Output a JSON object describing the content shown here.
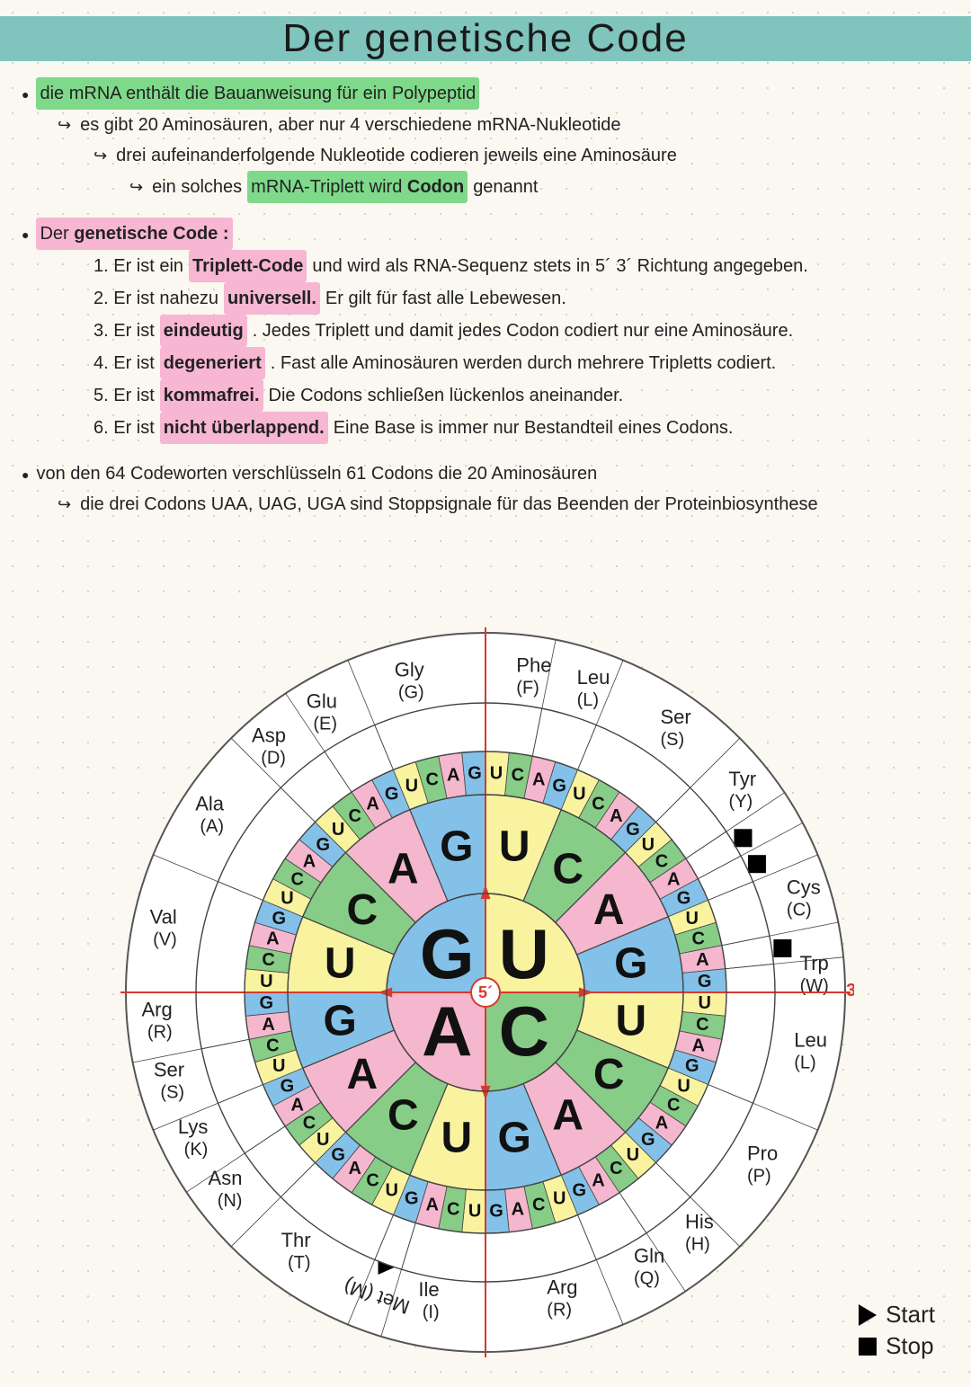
{
  "title": "Der genetische Code",
  "colors": {
    "titlebar": "#7fc4bd",
    "paper": "#faf8f0",
    "hl_green": "#7fd98a",
    "hl_pink": "#f7b6d2",
    "axis_red": "#d63a2f",
    "wheel_border": "#555555",
    "sector_line": "#444444",
    "base": {
      "U": "#f9f3a0",
      "C": "#87cc87",
      "A": "#f5b7ce",
      "G": "#84c1e8"
    }
  },
  "notes": {
    "l1": "die mRNA enthält die Bauanweisung für ein Polypeptid",
    "l2": "es gibt 20 Aminosäuren, aber nur 4 verschiedene mRNA-Nukleotide",
    "l3": "drei aufeinanderfolgende Nukleotide codieren jeweils eine Aminosäure",
    "l4a": "ein solches",
    "l4b": "mRNA-Triplett wird",
    "l4c": "Codon",
    "l4d": "genannt",
    "h2a": "Der",
    "h2b": "genetische Code :",
    "p1a": "1. Er ist ein",
    "p1b": "Triplett-Code",
    "p1c": "und wird als RNA-Sequenz stets in 5´      3´ Richtung angegeben.",
    "p2a": "2. Er ist nahezu",
    "p2b": "universell.",
    "p2c": "Er gilt für fast alle Lebewesen.",
    "p3a": "3. Er ist",
    "p3b": "eindeutig",
    "p3c": ". Jedes Triplett und damit jedes Codon codiert nur eine Aminosäure.",
    "p4a": "4. Er ist",
    "p4b": "degeneriert",
    "p4c": ". Fast alle Aminosäuren werden durch mehrere Tripletts codiert.",
    "p5a": "5. Er ist",
    "p5b": "kommafrei.",
    "p5c": "Die Codons schließen lückenlos aneinander.",
    "p6a": "6. Er ist",
    "p6b": "nicht überlappend.",
    "p6c": "Eine Base is immer nur Bestandteil eines Codons.",
    "l5": "von den 64 Codeworten verschlüsseln 61 Codons die 20 Aminosäuren",
    "l6": "die drei Codons UAA, UAG, UGA sind Stoppsignale für das Beenden der Proteinbiosynthese"
  },
  "legend": {
    "start": "Start",
    "stop": "Stop"
  },
  "wheel": {
    "radii": {
      "r1": 110,
      "r2": 220,
      "r3": 268,
      "r4": 322,
      "outer": 400
    },
    "center_label": "5´",
    "prime": "3´",
    "ring1": [
      {
        "b": "U",
        "a0": -90,
        "a1": 0
      },
      {
        "b": "C",
        "a0": 0,
        "a1": 90
      },
      {
        "b": "A",
        "a0": 90,
        "a1": 180
      },
      {
        "b": "G",
        "a0": 180,
        "a1": 270
      }
    ],
    "ring2_order": [
      "U",
      "C",
      "A",
      "G"
    ],
    "amino": [
      {
        "name": "Phe",
        "s": "(F)",
        "a0": -90,
        "a1": -78.75
      },
      {
        "name": "Leu",
        "s": "(L)",
        "a0": -78.75,
        "a1": -67.5
      },
      {
        "name": "Ser",
        "s": "(S)",
        "a0": -67.5,
        "a1": -45
      },
      {
        "name": "Tyr",
        "s": "(Y)",
        "a0": -45,
        "a1": -33.75
      },
      {
        "name": "stop",
        "s": "",
        "a0": -33.75,
        "a1": -28.125,
        "mark": "sq"
      },
      {
        "name": "stop",
        "s": "",
        "a0": -28.125,
        "a1": -22.5,
        "mark": "sq"
      },
      {
        "name": "Cys",
        "s": "(C)",
        "a0": -22.5,
        "a1": -11.25
      },
      {
        "name": "stop",
        "s": "",
        "a0": -11.25,
        "a1": -5.625,
        "mark": "sq"
      },
      {
        "name": "Trp",
        "s": "(W)",
        "a0": -5.625,
        "a1": 0
      },
      {
        "name": "Leu",
        "s": "(L)",
        "a0": 0,
        "a1": 22.5
      },
      {
        "name": "Pro",
        "s": "(P)",
        "a0": 22.5,
        "a1": 45
      },
      {
        "name": "His",
        "s": "(H)",
        "a0": 45,
        "a1": 56.25
      },
      {
        "name": "Gln",
        "s": "(Q)",
        "a0": 56.25,
        "a1": 67.5
      },
      {
        "name": "Arg",
        "s": "(R)",
        "a0": 67.5,
        "a1": 90
      },
      {
        "name": "Ile",
        "s": "(I)",
        "a0": 90,
        "a1": 106.875
      },
      {
        "name": "Met",
        "s": "(M)",
        "a0": 106.875,
        "a1": 112.5,
        "mark": "tri"
      },
      {
        "name": "Thr",
        "s": "(T)",
        "a0": 112.5,
        "a1": 135
      },
      {
        "name": "Asn",
        "s": "(N)",
        "a0": 135,
        "a1": 146.25
      },
      {
        "name": "Lys",
        "s": "(K)",
        "a0": 146.25,
        "a1": 157.5
      },
      {
        "name": "Ser",
        "s": "(S)",
        "a0": 157.5,
        "a1": 168.75
      },
      {
        "name": "Arg",
        "s": "(R)",
        "a0": 168.75,
        "a1": 180
      },
      {
        "name": "Val",
        "s": "(V)",
        "a0": 180,
        "a1": 202.5
      },
      {
        "name": "Ala",
        "s": "(A)",
        "a0": 202.5,
        "a1": 225
      },
      {
        "name": "Asp",
        "s": "(D)",
        "a0": 225,
        "a1": 236.25
      },
      {
        "name": "Glu",
        "s": "(E)",
        "a0": 236.25,
        "a1": 247.5
      },
      {
        "name": "Gly",
        "s": "(G)",
        "a0": 247.5,
        "a1": 270
      }
    ]
  }
}
